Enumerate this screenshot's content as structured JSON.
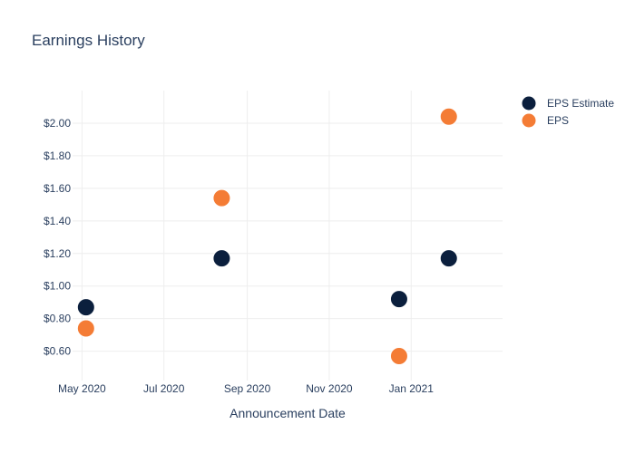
{
  "chart_data": {
    "type": "scatter",
    "title": "Earnings History",
    "xlabel": "Announcement Date",
    "ylabel": "",
    "x_tick_labels": [
      "May 2020",
      "Jul 2020",
      "Sep 2020",
      "Nov 2020",
      "Jan 2021"
    ],
    "x_tick_dates": [
      "2020-05-01",
      "2020-07-01",
      "2020-09-01",
      "2020-11-01",
      "2021-01-01"
    ],
    "xlim": [
      "2020-04-24",
      "2021-03-10"
    ],
    "y_tick_labels": [
      "$0.60",
      "$0.80",
      "$1.00",
      "$1.20",
      "$1.40",
      "$1.60",
      "$1.80",
      "$2.00"
    ],
    "y_ticks": [
      0.6,
      0.8,
      1.0,
      1.2,
      1.4,
      1.6,
      1.8,
      2.0
    ],
    "ylim": [
      0.42,
      2.2
    ],
    "grid": true,
    "legend_position": "top-right",
    "series": [
      {
        "name": "EPS Estimate",
        "color": "#0b1f3d",
        "x": [
          "2020-05-04",
          "2020-08-13",
          "2020-12-23",
          "2021-01-29"
        ],
        "y": [
          0.87,
          1.17,
          0.92,
          1.17
        ]
      },
      {
        "name": "EPS",
        "color": "#f47c35",
        "x": [
          "2020-05-04",
          "2020-08-13",
          "2020-12-23",
          "2021-01-29"
        ],
        "y": [
          0.74,
          1.54,
          0.57,
          2.04
        ]
      }
    ]
  }
}
